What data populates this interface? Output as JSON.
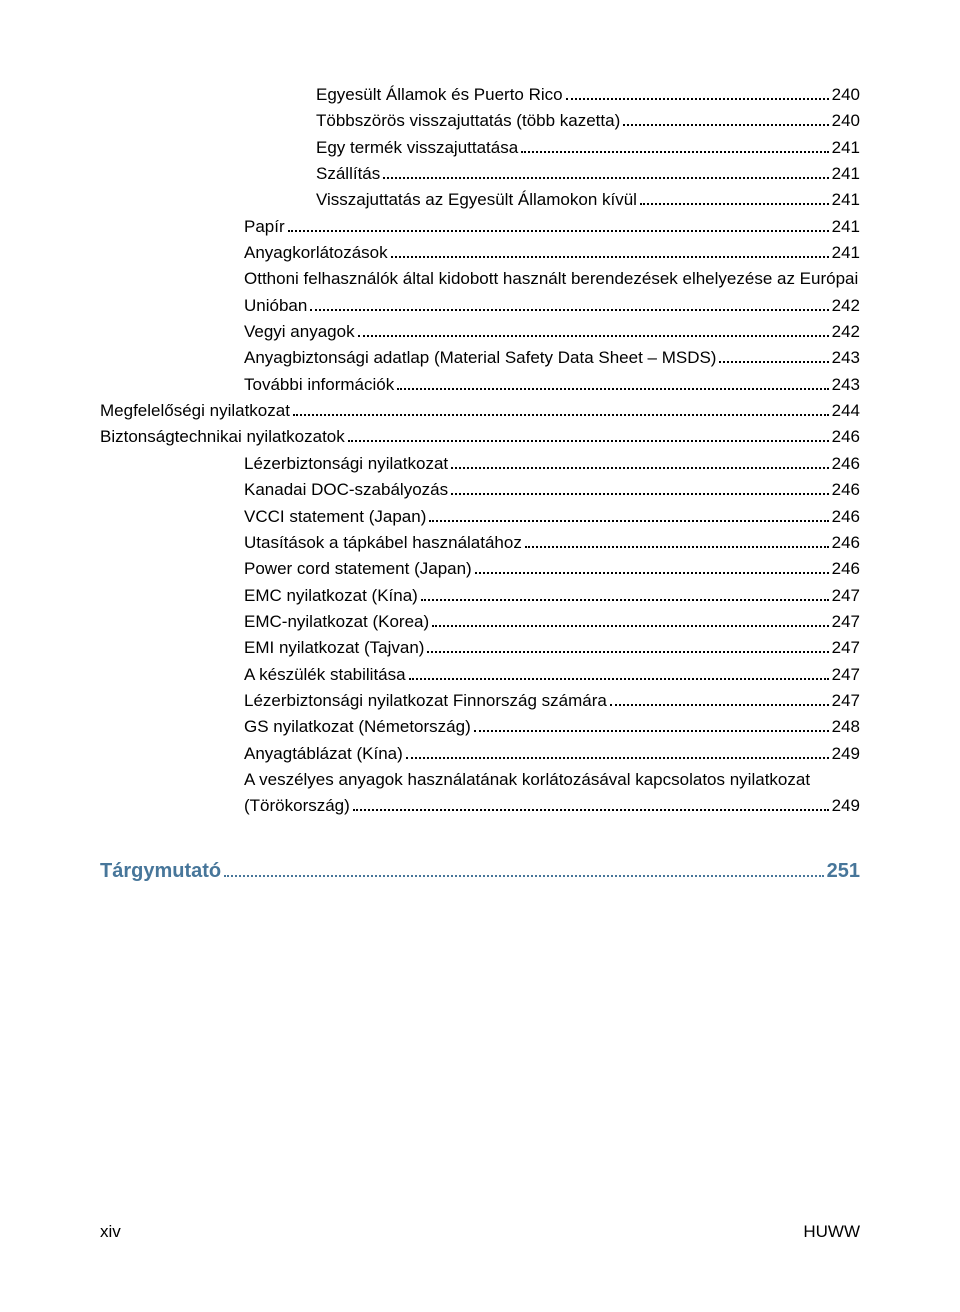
{
  "entries": [
    {
      "label": "Egyesült Államok és Puerto Rico",
      "page": "240",
      "indent": 3
    },
    {
      "label": "Többszörös visszajuttatás (több kazetta)",
      "page": "240",
      "indent": 3
    },
    {
      "label": "Egy termék visszajuttatása",
      "page": "241",
      "indent": 3
    },
    {
      "label": "Szállítás",
      "page": "241",
      "indent": 3
    },
    {
      "label": "Visszajuttatás az Egyesült Államokon kívül",
      "page": "241",
      "indent": 3
    },
    {
      "label": "Papír",
      "page": "241",
      "indent": 2
    },
    {
      "label": "Anyagkorlátozások",
      "page": "241",
      "indent": 2
    },
    {
      "label": "Otthoni felhasználók által kidobott használt berendezések elhelyezése az Európai",
      "cont": "Unióban",
      "page": "242",
      "indent": 2
    },
    {
      "label": "Vegyi anyagok",
      "page": "242",
      "indent": 2
    },
    {
      "label": "Anyagbiztonsági adatlap (Material Safety Data Sheet – MSDS)",
      "page": "243",
      "indent": 2
    },
    {
      "label": "További információk",
      "page": "243",
      "indent": 2
    },
    {
      "label": "Megfelelőségi nyilatkozat",
      "page": "244",
      "indent": 0
    },
    {
      "label": "Biztonságtechnikai nyilatkozatok",
      "page": "246",
      "indent": 0
    },
    {
      "label": "Lézerbiztonsági nyilatkozat",
      "page": "246",
      "indent": 2
    },
    {
      "label": "Kanadai DOC-szabályozás",
      "page": "246",
      "indent": 2
    },
    {
      "label": "VCCI statement (Japan)",
      "page": "246",
      "indent": 2
    },
    {
      "label": "Utasítások a tápkábel használatához",
      "page": "246",
      "indent": 2
    },
    {
      "label": "Power cord statement (Japan)",
      "page": "246",
      "indent": 2
    },
    {
      "label": "EMC nyilatkozat (Kína)",
      "page": "247",
      "indent": 2
    },
    {
      "label": "EMC-nyilatkozat (Korea)",
      "page": "247",
      "indent": 2
    },
    {
      "label": "EMI nyilatkozat (Tajvan)",
      "page": "247",
      "indent": 2
    },
    {
      "label": "A készülék stabilitása",
      "page": "247",
      "indent": 2
    },
    {
      "label": "Lézerbiztonsági nyilatkozat Finnország számára",
      "page": "247",
      "indent": 2
    },
    {
      "label": "GS nyilatkozat (Németország)",
      "page": "248",
      "indent": 2
    },
    {
      "label": "Anyagtáblázat (Kína)",
      "page": "249",
      "indent": 2
    },
    {
      "label": "A veszélyes anyagok használatának korlátozásával kapcsolatos nyilatkozat",
      "cont": "(Törökország)",
      "page": "249",
      "indent": 2
    }
  ],
  "index": {
    "label": "Tárgymutató",
    "page": "251"
  },
  "footer": {
    "left": "xiv",
    "right": "HUWW"
  }
}
